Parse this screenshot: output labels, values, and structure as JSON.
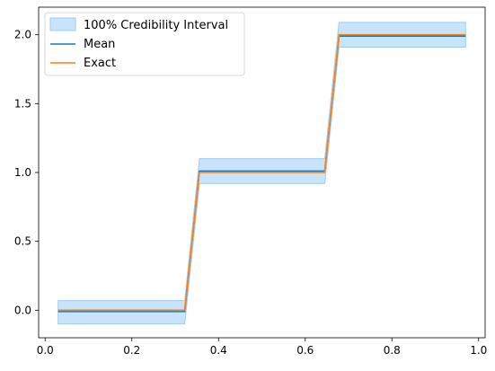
{
  "chart_data": {
    "type": "line",
    "title": "",
    "xlabel": "",
    "ylabel": "",
    "xlim": [
      -0.015,
      1.015
    ],
    "ylim": [
      -0.2,
      2.2
    ],
    "xticks": [
      0.0,
      0.2,
      0.4,
      0.6,
      0.8,
      1.0
    ],
    "xtick_labels": [
      "0.0",
      "0.2",
      "0.4",
      "0.6",
      "0.8",
      "1.0"
    ],
    "yticks": [
      0.0,
      0.5,
      1.0,
      1.5,
      2.0
    ],
    "ytick_labels": [
      "0.0",
      "0.5",
      "1.0",
      "1.5",
      "2.0"
    ],
    "grid": false,
    "legend_position": "upper-left",
    "legend": {
      "band_label": "100% Credibility Interval",
      "mean_label": "Mean",
      "exact_label": "Exact"
    },
    "colors": {
      "band_fill": "#c9e3fb",
      "band_edge": "#9dcdf3",
      "mean": "#1f77b4",
      "exact": "#ff7f0e"
    },
    "band": {
      "x": [
        0.03,
        0.322,
        0.356,
        0.645,
        0.678,
        0.97
      ],
      "upper": [
        0.07,
        0.07,
        1.1,
        1.1,
        2.09,
        2.09
      ],
      "lower": [
        -0.1,
        -0.1,
        0.92,
        0.92,
        1.91,
        1.91
      ]
    },
    "series": [
      {
        "name": "Mean",
        "x": [
          0.03,
          0.322,
          0.356,
          0.645,
          0.678,
          0.97
        ],
        "y": [
          -0.01,
          -0.01,
          1.01,
          1.01,
          1.99,
          1.99
        ]
      },
      {
        "name": "Exact",
        "x": [
          0.03,
          0.322,
          0.356,
          0.645,
          0.678,
          0.97
        ],
        "y": [
          0.0,
          0.0,
          1.0,
          1.0,
          2.0,
          2.0
        ]
      }
    ]
  }
}
